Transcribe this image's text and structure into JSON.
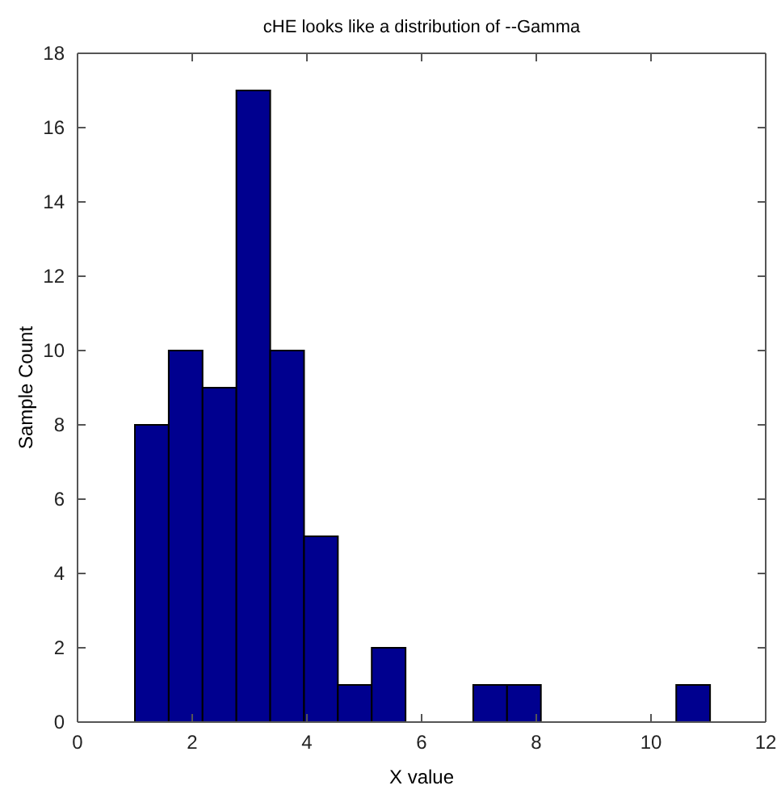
{
  "chart_data": {
    "type": "histogram",
    "title": "cHE looks like a distribution of --Gamma",
    "xlabel": "X value",
    "ylabel": "Sample Count",
    "bins": [
      1.0,
      1.59,
      2.18,
      2.77,
      3.36,
      3.95,
      4.54,
      5.13,
      5.72,
      6.31,
      6.9,
      7.49,
      8.08,
      8.67,
      9.26,
      9.85,
      10.44,
      11.03
    ],
    "values": [
      8,
      10,
      9,
      17,
      10,
      5,
      1,
      2,
      0,
      0,
      1,
      1,
      0,
      0,
      0,
      0,
      1
    ],
    "color": "#00008f",
    "xlim": [
      0,
      12
    ],
    "xticks": [
      0,
      2,
      4,
      6,
      8,
      10,
      12
    ],
    "ylim": [
      0,
      18
    ],
    "yticks": [
      0,
      2,
      4,
      6,
      8,
      10,
      12,
      14,
      16,
      18
    ],
    "grid": false
  }
}
